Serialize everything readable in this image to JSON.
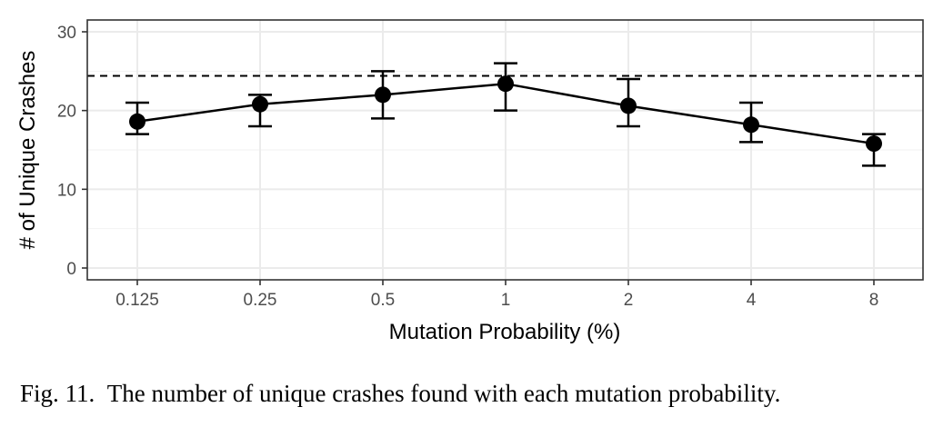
{
  "chart_data": {
    "type": "scatter",
    "title": "",
    "xlabel": "Mutation Probability (%)",
    "ylabel": "# of Unique Crashes",
    "categories": [
      "0.125",
      "0.25",
      "0.5",
      "1",
      "2",
      "4",
      "8"
    ],
    "series": [
      {
        "name": "Unique crashes",
        "values": [
          18.6,
          20.8,
          22.0,
          23.4,
          20.6,
          18.2,
          15.8
        ],
        "error_low": [
          17,
          18,
          19,
          20,
          18,
          16,
          13
        ],
        "error_high": [
          21,
          22,
          25,
          26,
          24,
          21,
          17
        ]
      }
    ],
    "reference_line": 24.4,
    "ylim": [
      -1.5,
      31.5
    ],
    "yticks": [
      0,
      10,
      20,
      30
    ],
    "grid": true,
    "style": "points connected by line with error bars; dashed horizontal reference line"
  },
  "caption": {
    "label": "Fig. 11.",
    "text": "The number of unique crashes found with each mutation probability."
  }
}
